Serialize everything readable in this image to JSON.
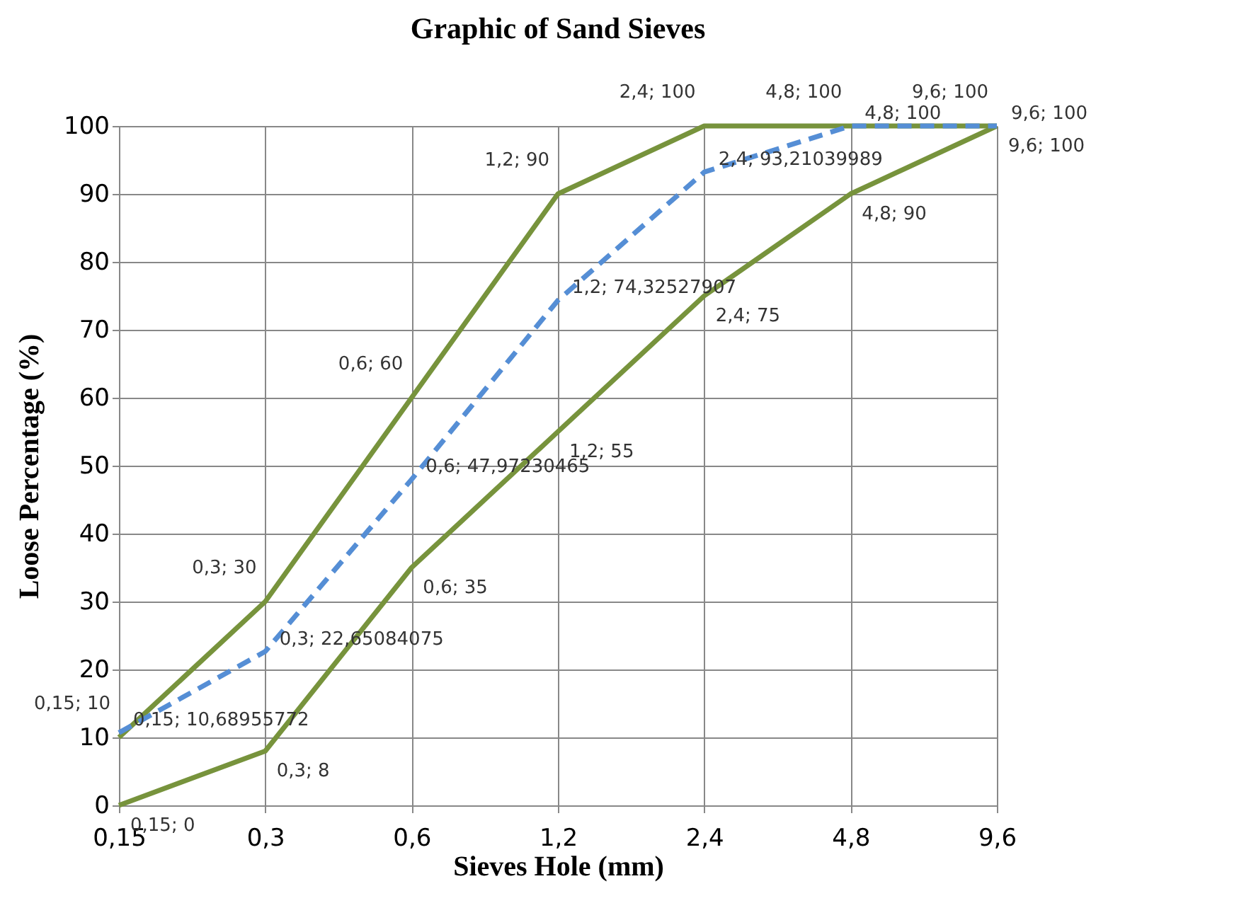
{
  "chart_data": {
    "type": "line",
    "title": "Graphic of Sand Sieves",
    "xlabel": "Sieves Hole (mm)",
    "ylabel": "Loose Percentage (%)",
    "categories": [
      "0,15",
      "0,3",
      "0,6",
      "1,2",
      "2,4",
      "4,8",
      "9,6"
    ],
    "series": [
      {
        "color": "#77933c",
        "line_style": "solid",
        "values": [
          10,
          30,
          60,
          90,
          100,
          100,
          100
        ],
        "value_labels": [
          "0,15; 10",
          "0,3; 30",
          "0,6; 60",
          "1,2; 90",
          "2,4; 100",
          "4,8; 100",
          "9,6; 100"
        ]
      },
      {
        "color": "#77933c",
        "line_style": "solid",
        "values": [
          0,
          8,
          35,
          55,
          75,
          90,
          100
        ],
        "value_labels": [
          "0,15; 0",
          "0,3; 8",
          "0,6; 35",
          "1,2; 55",
          "2,4; 75",
          "4,8; 90",
          "9,6; 100"
        ]
      },
      {
        "color": "#558ed5",
        "line_style": "dashed",
        "values": [
          10.68955772,
          22.65084075,
          47.97230465,
          74.32527907,
          93.21039989,
          100,
          100
        ],
        "value_labels": [
          "0,15; 10,68955772",
          "0,3; 22,65084075",
          "0,6; 47,97230465",
          "1,2; 74,32527907",
          "2,4; 93,21039989",
          "4,8; 100",
          "9,6; 100"
        ]
      }
    ],
    "ylim": [
      0,
      100
    ],
    "yticks": [
      0,
      10,
      20,
      30,
      40,
      50,
      60,
      70,
      80,
      90,
      100
    ],
    "grid": true,
    "legend": false,
    "marker": "none"
  }
}
